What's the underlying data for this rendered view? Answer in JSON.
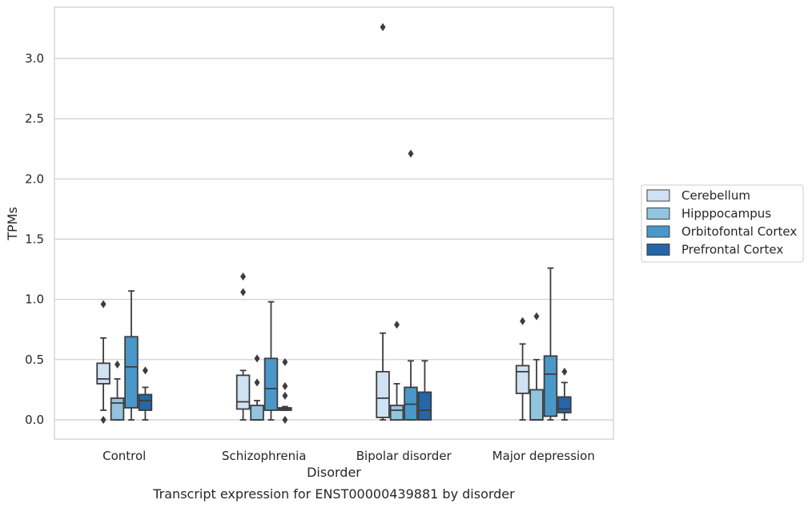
{
  "chart_data": {
    "type": "box",
    "title": "",
    "caption": "Transcript expression for ENST00000439881 by disorder",
    "xlabel": "Disorder",
    "ylabel": "TPMs",
    "ylim": [
      -0.16,
      3.44
    ],
    "yticks": [
      "0.0",
      "0.5",
      "1.0",
      "1.5",
      "2.0",
      "2.5",
      "3.0"
    ],
    "grid": "horizontal",
    "legend_placement": "right",
    "categories": [
      "Control",
      "Schizophrenia",
      "Bipolar disorder",
      "Major depression"
    ],
    "series": [
      {
        "name": "Cerebellum",
        "color": "#cfe1f2",
        "boxes": [
          {
            "whislo": 0.08,
            "q1": 0.3,
            "med": 0.34,
            "q3": 0.47,
            "whishi": 0.68,
            "fliers": [
              0.96,
              0.0
            ]
          },
          {
            "whislo": 0.0,
            "q1": 0.09,
            "med": 0.15,
            "q3": 0.37,
            "whishi": 0.41,
            "fliers": [
              1.19,
              1.06
            ]
          },
          {
            "whislo": 0.0,
            "q1": 0.02,
            "med": 0.18,
            "q3": 0.4,
            "whishi": 0.72,
            "fliers": [
              3.26
            ]
          },
          {
            "whislo": 0.0,
            "q1": 0.22,
            "med": 0.4,
            "q3": 0.45,
            "whishi": 0.63,
            "fliers": [
              0.82
            ]
          }
        ]
      },
      {
        "name": "Hipppocampus",
        "color": "#93c4de",
        "boxes": [
          {
            "whislo": 0.0,
            "q1": 0.0,
            "med": 0.14,
            "q3": 0.18,
            "whishi": 0.34,
            "fliers": [
              0.46
            ]
          },
          {
            "whislo": 0.0,
            "q1": 0.0,
            "med": 0.0,
            "q3": 0.12,
            "whishi": 0.16,
            "fliers": [
              0.51,
              0.31
            ]
          },
          {
            "whislo": 0.0,
            "q1": 0.0,
            "med": 0.08,
            "q3": 0.12,
            "whishi": 0.3,
            "fliers": [
              0.79
            ]
          },
          {
            "whislo": 0.0,
            "q1": 0.0,
            "med": 0.0,
            "q3": 0.25,
            "whishi": 0.5,
            "fliers": [
              0.86
            ]
          }
        ]
      },
      {
        "name": "Orbitofontal Cortex",
        "color": "#4a98c9",
        "boxes": [
          {
            "whislo": 0.0,
            "q1": 0.1,
            "med": 0.44,
            "q3": 0.69,
            "whishi": 1.07,
            "fliers": []
          },
          {
            "whislo": 0.0,
            "q1": 0.08,
            "med": 0.26,
            "q3": 0.51,
            "whishi": 0.98,
            "fliers": []
          },
          {
            "whislo": 0.0,
            "q1": 0.0,
            "med": 0.13,
            "q3": 0.27,
            "whishi": 0.49,
            "fliers": [
              2.21
            ]
          },
          {
            "whislo": 0.0,
            "q1": 0.03,
            "med": 0.38,
            "q3": 0.53,
            "whishi": 1.26,
            "fliers": []
          }
        ]
      },
      {
        "name": "Prefrontal Cortex",
        "color": "#2566a8",
        "boxes": [
          {
            "whislo": 0.0,
            "q1": 0.08,
            "med": 0.16,
            "q3": 0.21,
            "whishi": 0.27,
            "fliers": [
              0.41
            ]
          },
          {
            "whislo": 0.08,
            "q1": 0.08,
            "med": 0.09,
            "q3": 0.1,
            "whishi": 0.11,
            "fliers": [
              0.48,
              0.28,
              0.2,
              0.0
            ]
          },
          {
            "whislo": 0.0,
            "q1": 0.0,
            "med": 0.08,
            "q3": 0.23,
            "whishi": 0.49,
            "fliers": []
          },
          {
            "whislo": 0.0,
            "q1": 0.06,
            "med": 0.09,
            "q3": 0.19,
            "whishi": 0.31,
            "fliers": [
              0.4
            ]
          }
        ]
      }
    ]
  }
}
